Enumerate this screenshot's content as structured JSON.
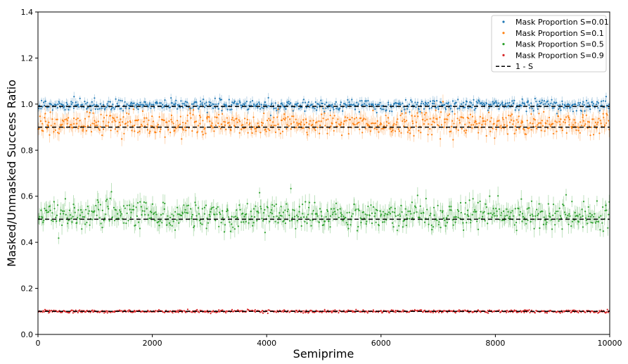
{
  "chart_data": {
    "type": "scatter",
    "title": "",
    "xlabel": "Semiprime",
    "ylabel": "Masked/Unmasked Success Ratio",
    "xlim": [
      0,
      10000
    ],
    "ylim": [
      0.0,
      1.4
    ],
    "xticks": [
      0,
      2000,
      4000,
      6000,
      8000,
      10000
    ],
    "yticks": [
      0.0,
      0.2,
      0.4,
      0.6,
      0.8,
      1.0,
      1.2,
      1.4
    ],
    "xtick_labels": [
      "0",
      "2000",
      "4000",
      "6000",
      "8000",
      "10000"
    ],
    "ytick_labels": [
      "0.0",
      "0.2",
      "0.4",
      "0.6",
      "0.8",
      "1.0",
      "1.2",
      "1.4"
    ],
    "grid": false,
    "legend_position": "top-right",
    "series": [
      {
        "name": "Mask Proportion S=0.01",
        "color": "#1f77b4",
        "center": 0.995,
        "spread": 0.012,
        "error": 0.018,
        "x_range": [
          0,
          10000
        ]
      },
      {
        "name": "Mask Proportion S=0.1",
        "color": "#ff7f0e",
        "center": 0.915,
        "spread": 0.025,
        "error": 0.03,
        "x_range": [
          0,
          10000
        ]
      },
      {
        "name": "Mask Proportion S=0.5",
        "color": "#2ca02c",
        "center": 0.52,
        "spread": 0.03,
        "error": 0.035,
        "x_range": [
          0,
          10000
        ]
      },
      {
        "name": "Mask Proportion S=0.9",
        "color": "#d62728",
        "center": 0.1,
        "spread": 0.003,
        "error": 0.004,
        "x_range": [
          0,
          10000
        ]
      }
    ],
    "reference_lines": [
      {
        "name": "1 - S",
        "color": "#000000",
        "style": "dashed",
        "y_values": [
          0.99,
          0.9,
          0.5,
          0.1
        ]
      }
    ]
  }
}
